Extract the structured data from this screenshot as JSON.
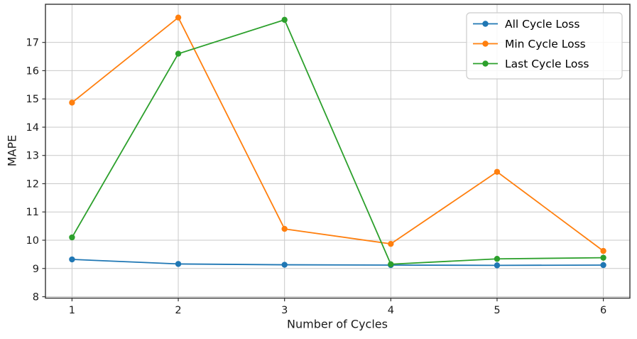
{
  "figure": {
    "background": "#ffffff"
  },
  "chart_data": {
    "type": "line",
    "title": "",
    "xlabel": "Number of Cycles",
    "ylabel": "MAPE",
    "x": [
      1,
      2,
      3,
      4,
      5,
      6
    ],
    "series": [
      {
        "name": "All Cycle Loss",
        "color": "#1f77b4",
        "values": [
          9.32,
          9.16,
          9.13,
          9.12,
          9.11,
          9.12
        ]
      },
      {
        "name": "Min Cycle Loss",
        "color": "#ff7f0e",
        "values": [
          14.87,
          17.88,
          10.4,
          9.87,
          12.42,
          9.62
        ]
      },
      {
        "name": "Last Cycle Loss",
        "color": "#2ca02c",
        "values": [
          10.1,
          16.6,
          17.8,
          9.15,
          9.34,
          9.38
        ]
      }
    ],
    "xlim": [
      0.75,
      6.25
    ],
    "ylim": [
      7.95,
      18.35
    ],
    "xticks": [
      "1",
      "2",
      "3",
      "4",
      "5",
      "6"
    ],
    "xtick_values": [
      1,
      2,
      3,
      4,
      5,
      6
    ],
    "yticks": [
      "8",
      "9",
      "10",
      "11",
      "12",
      "13",
      "14",
      "15",
      "16",
      "17"
    ],
    "ytick_values": [
      8,
      9,
      10,
      11,
      12,
      13,
      14,
      15,
      16,
      17
    ],
    "grid": true,
    "legend_position": "upper right",
    "marker": "circle",
    "grid_color": "#c9c9c9",
    "spine_color": "#333333",
    "tick_text_color": "#1a1a1a",
    "legend_border_color": "#cccccc",
    "legend_background": "rgba(255,255,255,0.85)"
  }
}
